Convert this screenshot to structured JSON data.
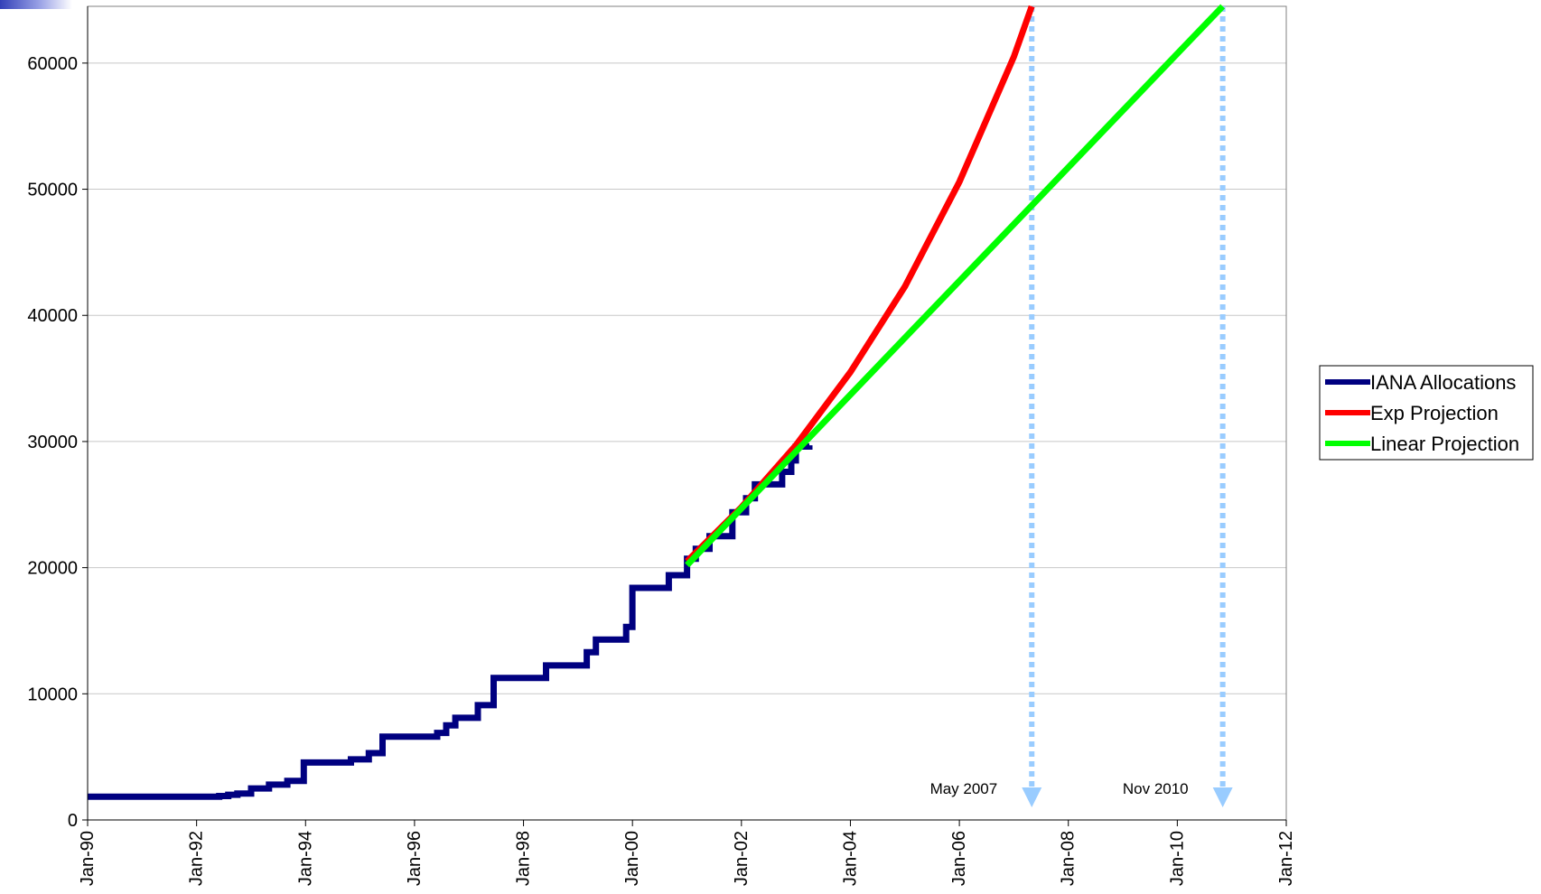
{
  "chart_data": {
    "type": "line",
    "title": "",
    "xlabel": "",
    "ylabel": "",
    "x_axis": {
      "type": "date",
      "range": [
        "1990-01-01",
        "2012-01-01"
      ],
      "tick_labels": [
        "Jan-90",
        "Jan-92",
        "Jan-94",
        "Jan-96",
        "Jan-98",
        "Jan-00",
        "Jan-02",
        "Jan-04",
        "Jan-06",
        "Jan-08",
        "Jan-10",
        "Jan-12"
      ]
    },
    "y_axis": {
      "range": [
        0,
        64500
      ],
      "tick_labels": [
        "0",
        "10000",
        "20000",
        "30000",
        "40000",
        "50000",
        "60000"
      ]
    },
    "grid": "horizontal",
    "legend_position": "right",
    "series": [
      {
        "name": "IANA Allocations",
        "style": "step",
        "color": "#000080",
        "points": [
          [
            "1990-01-01",
            1850
          ],
          [
            "1992-06-01",
            1900
          ],
          [
            "1992-08-01",
            2000
          ],
          [
            "1992-10-01",
            2100
          ],
          [
            "1993-01-01",
            2500
          ],
          [
            "1993-05-01",
            2800
          ],
          [
            "1993-09-01",
            3100
          ],
          [
            "1993-12-20",
            4550
          ],
          [
            "1994-11-01",
            4800
          ],
          [
            "1995-03-01",
            5300
          ],
          [
            "1995-06-01",
            6600
          ],
          [
            "1996-06-01",
            6900
          ],
          [
            "1996-08-01",
            7500
          ],
          [
            "1996-10-01",
            8100
          ],
          [
            "1997-03-01",
            9100
          ],
          [
            "1997-06-15",
            11250
          ],
          [
            "1998-06-01",
            12250
          ],
          [
            "1999-03-01",
            13300
          ],
          [
            "1999-05-01",
            14300
          ],
          [
            "1999-11-20",
            15300
          ],
          [
            "2000-01-01",
            18400
          ],
          [
            "2000-09-01",
            19400
          ],
          [
            "2001-01-01",
            20700
          ],
          [
            "2001-03-01",
            21500
          ],
          [
            "2001-06-01",
            22500
          ],
          [
            "2001-11-01",
            24400
          ],
          [
            "2002-02-01",
            25500
          ],
          [
            "2002-04-01",
            26600
          ],
          [
            "2002-10-01",
            27600
          ],
          [
            "2002-12-01",
            28500
          ],
          [
            "2003-01-01",
            29600
          ],
          [
            "2003-04-01",
            29700
          ]
        ]
      },
      {
        "name": "Exp Projection",
        "style": "line",
        "color": "#ff0000",
        "points": [
          [
            "2001-01-01",
            20500
          ],
          [
            "2002-01-01",
            24800
          ],
          [
            "2003-01-01",
            29700
          ],
          [
            "2004-01-01",
            35500
          ],
          [
            "2005-01-01",
            42300
          ],
          [
            "2006-01-01",
            50600
          ],
          [
            "2007-01-01",
            60500
          ],
          [
            "2007-05-01",
            64500
          ]
        ]
      },
      {
        "name": "Linear Projection",
        "style": "line",
        "color": "#00ff00",
        "points": [
          [
            "2001-01-01",
            20200
          ],
          [
            "2010-11-01",
            64500
          ]
        ]
      }
    ],
    "annotations": [
      {
        "label": "May 2007",
        "date": "2007-05-01",
        "color": "#99ccff"
      },
      {
        "label": "Nov 2010",
        "date": "2010-11-01",
        "color": "#99ccff"
      }
    ]
  }
}
